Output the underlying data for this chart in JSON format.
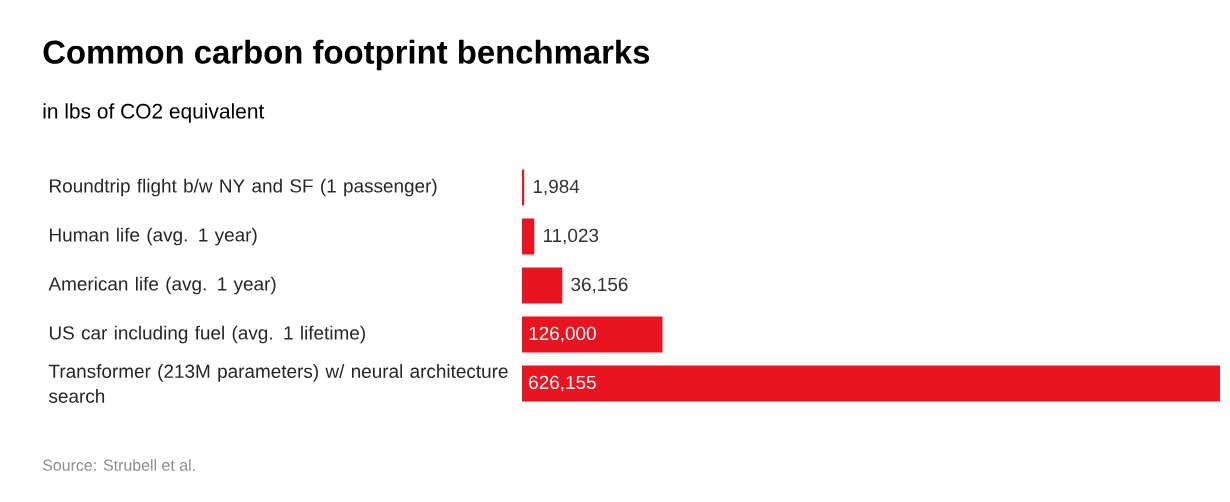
{
  "chart_data": {
    "type": "bar",
    "orientation": "horizontal",
    "title": "Common carbon footprint benchmarks",
    "subtitle": "in lbs of CO2 equivalent",
    "categories": [
      "Roundtrip flight b/w NY and SF (1 passenger)",
      "Human life (avg. 1 year)",
      "American life (avg. 1 year)",
      "US car including fuel (avg. 1 lifetime)",
      "Transformer (213M parameters) w/ neural architecture search"
    ],
    "values": [
      1984,
      11023,
      36156,
      126000,
      626155
    ],
    "value_labels": [
      "1,984",
      "11,023",
      "36,156",
      "126,000",
      "626,155"
    ],
    "color": "#e8141f",
    "annotations": [
      "Source: Strubell et al."
    ]
  }
}
